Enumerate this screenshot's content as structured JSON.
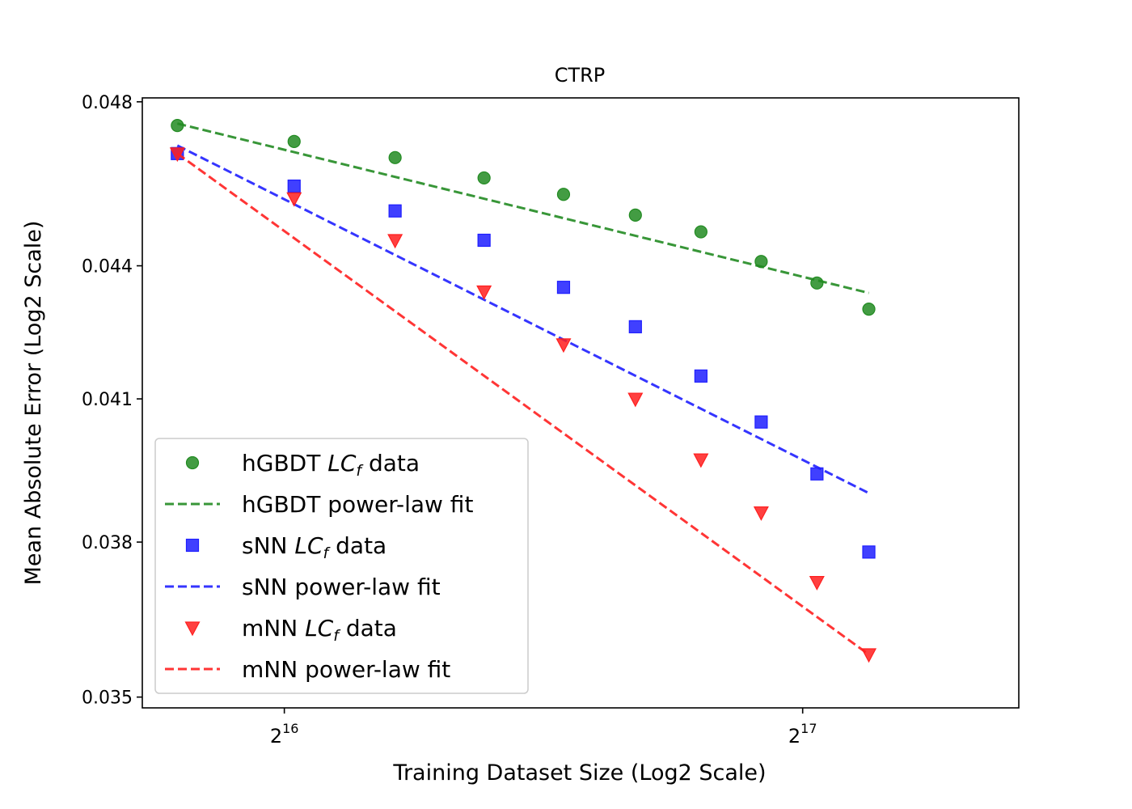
{
  "chart_data": {
    "type": "scatter",
    "title": "CTRP",
    "xlabel": "Training Dataset Size (Log2 Scale)",
    "ylabel": "Mean Absolute Error (Log2 Scale)",
    "x_scale": "log2",
    "y_scale": "log2",
    "xlim": [
      54200,
      175000
    ],
    "ylim": [
      0.0348,
      0.0481
    ],
    "x_ticks": [
      {
        "value": 65536,
        "base": "2",
        "exp": "16"
      },
      {
        "value": 131072,
        "base": "2",
        "exp": "17"
      }
    ],
    "y_ticks": [
      {
        "value": 0.048,
        "label": "0.048"
      },
      {
        "value": 0.044,
        "label": "0.044"
      },
      {
        "value": 0.041,
        "label": "0.041"
      },
      {
        "value": 0.038,
        "label": "0.038"
      },
      {
        "value": 0.035,
        "label": "0.035"
      }
    ],
    "x": [
      56800,
      66400,
      76000,
      85600,
      95200,
      104800,
      114400,
      124000,
      133600,
      143200
    ],
    "grid": false,
    "legend_position": "lower-left",
    "series": [
      {
        "name": "hGBDT",
        "color": "#228b22",
        "marker": "circle",
        "data_label_base": "hGBDT ",
        "data_label_italic": "LC",
        "data_label_sub": "f",
        "data_label_suffix": " data",
        "fit_label": "hGBDT power-law fit",
        "values": [
          0.0474,
          0.047,
          0.0466,
          0.0461,
          0.0457,
          0.0452,
          0.0448,
          0.0441,
          0.0436,
          0.043
        ],
        "fit": {
          "start": [
            56800,
            0.04745
          ],
          "end": [
            143200,
            0.04337
          ]
        }
      },
      {
        "name": "sNN",
        "color": "#1f1fff",
        "marker": "square",
        "data_label_base": "sNN ",
        "data_label_italic": "LC",
        "data_label_sub": "f",
        "data_label_suffix": " data",
        "fit_label": "sNN power-law fit",
        "values": [
          0.0467,
          0.0459,
          0.0453,
          0.0446,
          0.0435,
          0.0426,
          0.0415,
          0.0405,
          0.0394,
          0.0378
        ],
        "fit": {
          "start": [
            56800,
            0.0469
          ],
          "end": [
            143200,
            0.039
          ]
        }
      },
      {
        "name": "mNN",
        "color": "#ff1f1f",
        "marker": "triangle-down",
        "data_label_base": "mNN ",
        "data_label_italic": "LC",
        "data_label_sub": "f",
        "data_label_suffix": " data",
        "fit_label": "mNN power-law fit",
        "values": [
          0.0467,
          0.0456,
          0.0446,
          0.0434,
          0.0422,
          0.041,
          0.0397,
          0.0386,
          0.0372,
          0.0358
        ],
        "fit": {
          "start": [
            56800,
            0.0467
          ],
          "end": [
            143200,
            0.0358
          ]
        }
      }
    ]
  }
}
